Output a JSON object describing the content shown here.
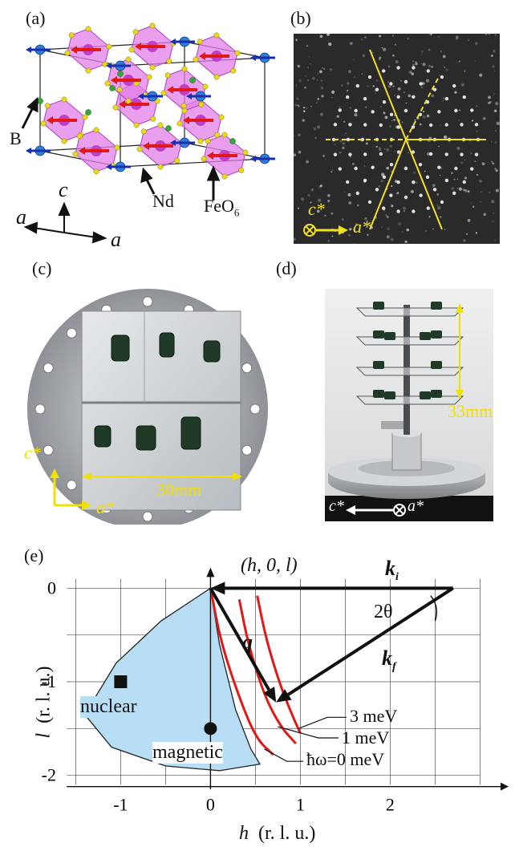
{
  "panels": {
    "a": {
      "label": "(a)",
      "atom_labels": {
        "B": "B",
        "Nd": "Nd",
        "FeO": "FeO",
        "FeO_sub": "6"
      },
      "axes": {
        "c": "c",
        "a_left": "a",
        "a_right": "a"
      },
      "colors": {
        "octahedron": "#e27ee8",
        "octa_edge": "#b040c0",
        "Nd": "#2f7fd8",
        "Fe": "#c040c8",
        "O": "#e8d820",
        "B": "#33aa33",
        "spin_red": "#e01818",
        "spin_blue": "#1a2fb0"
      }
    },
    "b": {
      "label": "(b)",
      "axis_c": "c*",
      "axis_a": "a*",
      "colors": {
        "line": "#f0e020",
        "background": "#2a2a2a",
        "spot": "#ffffff"
      }
    },
    "c": {
      "label": "(c)",
      "axis_c": "c*",
      "axis_a": "a*",
      "scale": "30mm",
      "colors": {
        "annotation": "#f2e000",
        "crystal": "#1f3a26",
        "plate": "#cfd3d6"
      }
    },
    "d": {
      "label": "(d)",
      "scale": "33mm",
      "axis_c": "c*",
      "axis_a": "a*",
      "colors": {
        "annotation": "#f2e000",
        "axis": "#ffffff"
      }
    },
    "e": {
      "label": "(e)",
      "coordinate_label": "(h, 0, l)",
      "ki_label": "k",
      "ki_sub": "i",
      "kf_label": "k",
      "kf_sub": "f",
      "theta_label": "2θ",
      "q_label": "q",
      "nuclear_label": "nuclear",
      "magnetic_label": "magnetic",
      "energy_labels": [
        "3 meV",
        "1 meV",
        "ħω=0 meV"
      ],
      "colors": {
        "region": "#b8def5",
        "curve": "#e01818",
        "marker": "#111111"
      }
    }
  },
  "chart_data": {
    "type": "scatter",
    "xlabel": "h  (r. l. u.)",
    "ylabel": "l  (r. l. u.)",
    "xlim": [
      -1.7,
      3.3
    ],
    "ylim": [
      -2.2,
      0.2
    ],
    "x_ticks": [
      "-1",
      "0",
      "1",
      "2"
    ],
    "y_ticks": [
      "0",
      "-1",
      "-2"
    ],
    "x_tick_values": [
      -1,
      0,
      1,
      2
    ],
    "y_tick_values": [
      0,
      -1,
      -2
    ],
    "grid": true,
    "points": [
      {
        "name": "nuclear",
        "x": -1,
        "y": -1,
        "marker": "square"
      },
      {
        "name": "magnetic",
        "x": 0,
        "y": -1.5,
        "marker": "circle"
      }
    ],
    "vectors": [
      {
        "name": "k_i",
        "from": [
          2.7,
          0
        ],
        "to": [
          0,
          0
        ]
      },
      {
        "name": "k_f",
        "from": [
          2.7,
          0
        ],
        "to": [
          0.73,
          -1.22
        ]
      },
      {
        "name": "q",
        "from": [
          0,
          0
        ],
        "to": [
          0.73,
          -1.22
        ]
      }
    ],
    "curves": [
      {
        "name": "ħω=0 meV",
        "points": [
          [
            0.0,
            0.0
          ],
          [
            0.12,
            -0.6
          ],
          [
            0.35,
            -1.25
          ],
          [
            0.52,
            -1.62
          ],
          [
            0.7,
            -1.78
          ]
        ]
      },
      {
        "name": "1 meV",
        "points": [
          [
            0.32,
            -0.12
          ],
          [
            0.42,
            -0.6
          ],
          [
            0.6,
            -1.15
          ],
          [
            0.78,
            -1.48
          ],
          [
            0.95,
            -1.66
          ]
        ]
      },
      {
        "name": "3 meV",
        "points": [
          [
            0.52,
            -0.08
          ],
          [
            0.62,
            -0.55
          ],
          [
            0.78,
            -1.05
          ],
          [
            0.92,
            -1.38
          ],
          [
            1.0,
            -1.55
          ]
        ]
      }
    ],
    "region": {
      "name": "accessible",
      "points": [
        [
          0,
          0
        ],
        [
          -0.55,
          -0.35
        ],
        [
          -1.05,
          -0.8
        ],
        [
          -1.4,
          -1.35
        ],
        [
          -1.1,
          -1.7
        ],
        [
          -0.5,
          -1.9
        ],
        [
          0.1,
          -1.95
        ],
        [
          0.55,
          -1.88
        ],
        [
          0.45,
          -1.72
        ],
        [
          0.28,
          -1.3
        ],
        [
          0.1,
          -0.6
        ],
        [
          0,
          0
        ]
      ]
    }
  }
}
